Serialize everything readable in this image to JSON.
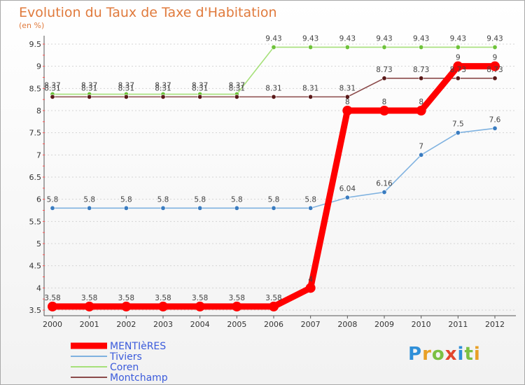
{
  "chart_data": {
    "type": "line",
    "title": "Evolution du Taux de Taxe d'Habitation",
    "subtitle": "(en %)",
    "xlabel": "",
    "ylabel": "",
    "categories": [
      "2000",
      "2001",
      "2002",
      "2003",
      "2004",
      "2005",
      "2006",
      "2007",
      "2008",
      "2009",
      "2010",
      "2011",
      "2012"
    ],
    "ylim": [
      3.5,
      9.5
    ],
    "yticks": [
      3.5,
      4,
      4.5,
      5,
      5.5,
      6,
      6.5,
      7,
      7.5,
      8,
      8.5,
      9,
      9.5
    ],
    "ytick_labels": [
      "3.5",
      "4",
      "4.5",
      "5",
      "5.5",
      "6",
      "6.5",
      "7",
      "7.5",
      "8",
      "8.5",
      "9",
      "9.5"
    ],
    "grid": "horizontal dotted",
    "legend_position": "bottom-left",
    "series": [
      {
        "name": "MENTIèRES",
        "color": "#ff0000",
        "point_color": "#ff0000",
        "emphasis": true,
        "values": [
          3.58,
          3.58,
          3.58,
          3.58,
          3.58,
          3.58,
          3.58,
          4,
          8,
          8,
          8,
          9,
          9
        ],
        "labels": [
          "3.58",
          "3.58",
          "3.58",
          "3.58",
          "3.58",
          "3.58",
          "3.58",
          "4",
          "8",
          "8",
          "8",
          "9",
          "9"
        ]
      },
      {
        "name": "Tiviers",
        "color": "#7fb2e0",
        "point_color": "#3a7cc0",
        "emphasis": false,
        "values": [
          5.8,
          5.8,
          5.8,
          5.8,
          5.8,
          5.8,
          5.8,
          5.8,
          6.04,
          6.16,
          7,
          7.5,
          7.6
        ],
        "labels": [
          "5.8",
          "5.8",
          "5.8",
          "5.8",
          "5.8",
          "5.8",
          "5.8",
          "5.8",
          "6.04",
          "6.16",
          "7",
          "7.5",
          "7.6"
        ]
      },
      {
        "name": "Coren",
        "color": "#a6e07a",
        "point_color": "#6ec23a",
        "emphasis": false,
        "values": [
          8.37,
          8.37,
          8.37,
          8.37,
          8.37,
          8.37,
          9.43,
          9.43,
          9.43,
          9.43,
          9.43,
          9.43,
          9.43
        ],
        "labels": [
          "8.37",
          "8.37",
          "8.37",
          "8.37",
          "8.37",
          "8.37",
          "9.43",
          "9.43",
          "9.43",
          "9.43",
          "9.43",
          "9.43",
          "9.43"
        ]
      },
      {
        "name": "Montchamp",
        "color": "#8b4a4a",
        "point_color": "#5a1a1a",
        "emphasis": false,
        "values": [
          8.31,
          8.31,
          8.31,
          8.31,
          8.31,
          8.31,
          8.31,
          8.31,
          8.31,
          8.73,
          8.73,
          8.73,
          8.73
        ],
        "labels": [
          "8.31",
          "8.31",
          "8.31",
          "8.31",
          "8.31",
          "8.31",
          "8.31",
          "8.31",
          "8.31",
          "8.73",
          "8.73",
          "8.73",
          "8.73"
        ]
      }
    ]
  },
  "branding": {
    "logo_letters": [
      "P",
      "r",
      "o",
      "x",
      "i",
      "t",
      "i"
    ]
  }
}
